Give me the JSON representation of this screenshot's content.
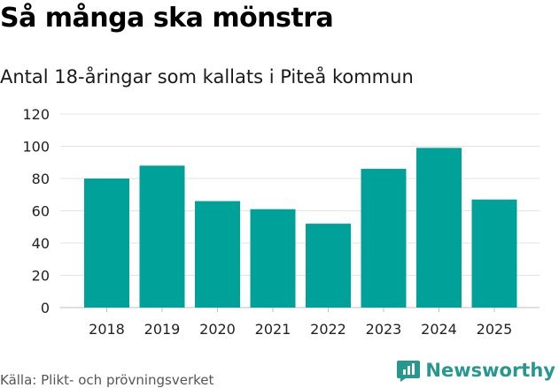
{
  "title": "Så många ska mönstra",
  "subtitle": "Antal 18-åringar som kallats i Piteå kommun",
  "source": "Källa: Plikt- och prövningsverket",
  "brand": {
    "name": "Newsworthy",
    "icon": "bar-chart-speech-icon",
    "color": "#27988d"
  },
  "chart_data": {
    "type": "bar",
    "categories": [
      "2018",
      "2019",
      "2020",
      "2021",
      "2022",
      "2023",
      "2024",
      "2025"
    ],
    "values": [
      80,
      88,
      66,
      61,
      52,
      86,
      99,
      67
    ],
    "ylim": [
      0,
      120
    ],
    "yticks": [
      "0",
      "20",
      "40",
      "60",
      "80",
      "100",
      "120"
    ],
    "grid": true,
    "bar_color": "#00a198",
    "xlabel": "",
    "ylabel": ""
  }
}
